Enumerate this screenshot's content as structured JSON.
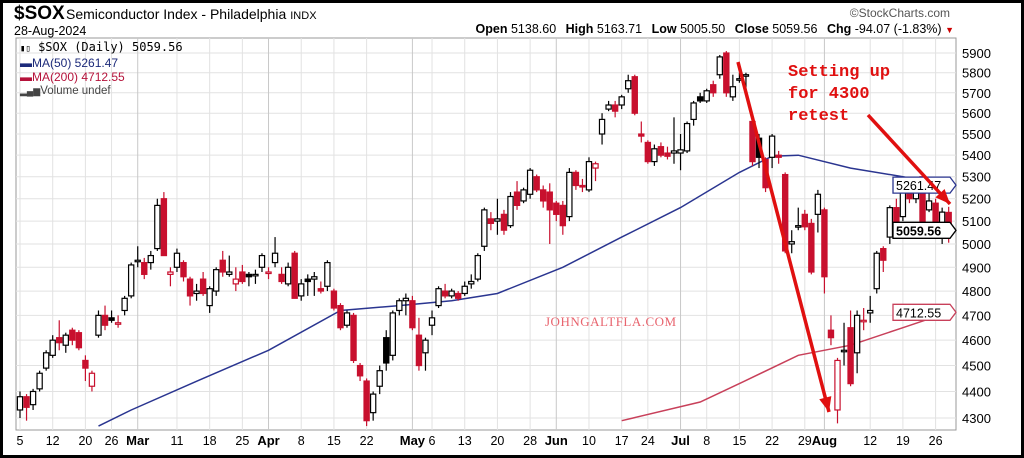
{
  "header": {
    "symbol": "$SOX",
    "name": "Semiconductor Index - Philadelphia",
    "exchange": "INDX",
    "date": "28-Aug-2024",
    "copyright": "©StockCharts.com",
    "open_label": "Open",
    "open": "5138.60",
    "high_label": "High",
    "high": "5163.71",
    "low_label": "Low",
    "low": "5005.50",
    "close_label": "Close",
    "close": "5059.56",
    "chg_label": "Chg",
    "chg": "-94.07 (-1.83%)",
    "chg_icon": "triangle-down-icon"
  },
  "legend": {
    "main": "$SOX (Daily) 5059.56",
    "ma50": "MA(50) 5261.47",
    "ma200": "MA(200) 4712.55",
    "volume": "Volume undef"
  },
  "annotation": {
    "text": "Setting up\nfor 4300\nretest",
    "color": "#e01010"
  },
  "watermark": "JOHNGALTFLA.COM",
  "chart_data": {
    "type": "candlestick",
    "y_scale": "log",
    "ylim": [
      4250,
      5950
    ],
    "y_ticks": [
      4300,
      4400,
      4500,
      4600,
      4700,
      4800,
      4900,
      5000,
      5100,
      5200,
      5300,
      5400,
      5500,
      5600,
      5700,
      5800,
      5900
    ],
    "grid": true,
    "colors": {
      "up": "#000000",
      "down": "#c8102e",
      "ma50": "#2a3590",
      "ma200": "#c8405a"
    },
    "x_ticks": [
      {
        "label": "5",
        "day_index": 0,
        "bold": false
      },
      {
        "label": "12",
        "day_index": 5,
        "bold": false
      },
      {
        "label": "20",
        "day_index": 10,
        "bold": false
      },
      {
        "label": "26",
        "day_index": 14,
        "bold": false
      },
      {
        "label": "Mar",
        "day_index": 18,
        "bold": true
      },
      {
        "label": "11",
        "day_index": 24,
        "bold": false
      },
      {
        "label": "18",
        "day_index": 29,
        "bold": false
      },
      {
        "label": "25",
        "day_index": 34,
        "bold": false
      },
      {
        "label": "Apr",
        "day_index": 38,
        "bold": true
      },
      {
        "label": "8",
        "day_index": 43,
        "bold": false
      },
      {
        "label": "15",
        "day_index": 48,
        "bold": false
      },
      {
        "label": "22",
        "day_index": 53,
        "bold": false
      },
      {
        "label": "May",
        "day_index": 60,
        "bold": true
      },
      {
        "label": "6",
        "day_index": 63,
        "bold": false
      },
      {
        "label": "13",
        "day_index": 68,
        "bold": false
      },
      {
        "label": "20",
        "day_index": 73,
        "bold": false
      },
      {
        "label": "28",
        "day_index": 78,
        "bold": false
      },
      {
        "label": "Jun",
        "day_index": 82,
        "bold": true
      },
      {
        "label": "10",
        "day_index": 87,
        "bold": false
      },
      {
        "label": "17",
        "day_index": 92,
        "bold": false
      },
      {
        "label": "24",
        "day_index": 96,
        "bold": false
      },
      {
        "label": "Jul",
        "day_index": 101,
        "bold": true
      },
      {
        "label": "8",
        "day_index": 105,
        "bold": false
      },
      {
        "label": "15",
        "day_index": 110,
        "bold": false
      },
      {
        "label": "22",
        "day_index": 115,
        "bold": false
      },
      {
        "label": "29",
        "day_index": 120,
        "bold": false
      },
      {
        "label": "Aug",
        "day_index": 123,
        "bold": true
      },
      {
        "label": "12",
        "day_index": 130,
        "bold": false
      },
      {
        "label": "19",
        "day_index": 135,
        "bold": false
      },
      {
        "label": "26",
        "day_index": 140,
        "bold": false
      }
    ],
    "candles_ohlc": [
      [
        4330,
        4400,
        4300,
        4380
      ],
      [
        4380,
        4390,
        4290,
        4340
      ],
      [
        4350,
        4410,
        4330,
        4400
      ],
      [
        4410,
        4480,
        4400,
        4470
      ],
      [
        4490,
        4560,
        4480,
        4550
      ],
      [
        4540,
        4620,
        4530,
        4600
      ],
      [
        4610,
        4680,
        4560,
        4590
      ],
      [
        4580,
        4630,
        4550,
        4620
      ],
      [
        4640,
        4650,
        4580,
        4600
      ],
      [
        4630,
        4640,
        4560,
        4570
      ],
      [
        4520,
        4540,
        4440,
        4490
      ],
      [
        4420,
        4480,
        4400,
        4470
      ],
      [
        4620,
        4720,
        4610,
        4700
      ],
      [
        4700,
        4740,
        4640,
        4660
      ],
      [
        4690,
        4720,
        4670,
        4680
      ],
      [
        4670,
        4700,
        4650,
        4670
      ],
      [
        4720,
        4780,
        4700,
        4770
      ],
      [
        4780,
        4920,
        4770,
        4910
      ],
      [
        4930,
        4990,
        4900,
        4930
      ],
      [
        4920,
        4940,
        4850,
        4870
      ],
      [
        4920,
        4970,
        4890,
        4950
      ],
      [
        4980,
        5200,
        4970,
        5170
      ],
      [
        5200,
        5230,
        4950,
        4950
      ],
      [
        4870,
        4900,
        4820,
        4880
      ],
      [
        4900,
        4980,
        4880,
        4960
      ],
      [
        4920,
        4930,
        4840,
        4860
      ],
      [
        4850,
        4860,
        4740,
        4780
      ],
      [
        4790,
        4830,
        4760,
        4800
      ],
      [
        4850,
        4880,
        4780,
        4790
      ],
      [
        4740,
        4820,
        4710,
        4810
      ],
      [
        4800,
        4900,
        4780,
        4890
      ],
      [
        4930,
        4970,
        4860,
        4880
      ],
      [
        4870,
        4950,
        4860,
        4880
      ],
      [
        4830,
        4900,
        4800,
        4850
      ],
      [
        4880,
        4910,
        4830,
        4840
      ],
      [
        4870,
        4880,
        4820,
        4860
      ],
      [
        4870,
        4890,
        4830,
        4870
      ],
      [
        4900,
        4960,
        4880,
        4950
      ],
      [
        4880,
        4900,
        4850,
        4880
      ],
      [
        4920,
        5030,
        4900,
        4960
      ],
      [
        4870,
        4900,
        4830,
        4840
      ],
      [
        4830,
        4920,
        4820,
        4900
      ],
      [
        4960,
        4970,
        4770,
        4770
      ],
      [
        4780,
        4850,
        4760,
        4830
      ],
      [
        4850,
        4870,
        4780,
        4840
      ],
      [
        4850,
        4880,
        4780,
        4860
      ],
      [
        4810,
        4840,
        4790,
        4800
      ],
      [
        4820,
        4930,
        4800,
        4920
      ],
      [
        4800,
        4810,
        4720,
        4730
      ],
      [
        4740,
        4750,
        4640,
        4650
      ],
      [
        4660,
        4720,
        4650,
        4710
      ],
      [
        4700,
        4710,
        4510,
        4520
      ],
      [
        4500,
        4510,
        4440,
        4460
      ],
      [
        4440,
        4450,
        4270,
        4290
      ],
      [
        4320,
        4400,
        4290,
        4390
      ],
      [
        4420,
        4500,
        4390,
        4480
      ],
      [
        4610,
        4640,
        4480,
        4510
      ],
      [
        4540,
        4720,
        4520,
        4710
      ],
      [
        4720,
        4770,
        4700,
        4760
      ],
      [
        4760,
        4790,
        4700,
        4770
      ],
      [
        4760,
        4780,
        4640,
        4650
      ],
      [
        4620,
        4690,
        4480,
        4500
      ],
      [
        4550,
        4610,
        4480,
        4600
      ],
      [
        4660,
        4720,
        4620,
        4690
      ],
      [
        4740,
        4820,
        4730,
        4810
      ],
      [
        4800,
        4830,
        4770,
        4780
      ],
      [
        4780,
        4810,
        4770,
        4800
      ],
      [
        4790,
        4800,
        4760,
        4770
      ],
      [
        4790,
        4840,
        4780,
        4820
      ],
      [
        4830,
        4870,
        4810,
        4840
      ],
      [
        4850,
        4960,
        4840,
        4950
      ],
      [
        4990,
        5160,
        4970,
        5150
      ],
      [
        5110,
        5140,
        5060,
        5090
      ],
      [
        5100,
        5200,
        5040,
        5110
      ],
      [
        5130,
        5150,
        5040,
        5060
      ],
      [
        5080,
        5230,
        5070,
        5210
      ],
      [
        5230,
        5280,
        5150,
        5170
      ],
      [
        5190,
        5250,
        5180,
        5240
      ],
      [
        5220,
        5340,
        5200,
        5330
      ],
      [
        5300,
        5310,
        5230,
        5240
      ],
      [
        5240,
        5260,
        5160,
        5190
      ],
      [
        5230,
        5270,
        5000,
        5150
      ],
      [
        5180,
        5190,
        5100,
        5130
      ],
      [
        5170,
        5190,
        5040,
        5080
      ],
      [
        5120,
        5340,
        5100,
        5320
      ],
      [
        5320,
        5330,
        5240,
        5260
      ],
      [
        5260,
        5290,
        5230,
        5255
      ],
      [
        5240,
        5390,
        5230,
        5370
      ],
      [
        5340,
        5370,
        5280,
        5360
      ],
      [
        5500,
        5600,
        5450,
        5570
      ],
      [
        5620,
        5660,
        5610,
        5640
      ],
      [
        5640,
        5660,
        5580,
        5610
      ],
      [
        5640,
        5690,
        5620,
        5680
      ],
      [
        5720,
        5790,
        5700,
        5760
      ],
      [
        5780,
        5790,
        5590,
        5600
      ],
      [
        5500,
        5560,
        5460,
        5490
      ],
      [
        5460,
        5470,
        5360,
        5370
      ],
      [
        5370,
        5450,
        5350,
        5430
      ],
      [
        5440,
        5460,
        5390,
        5400
      ],
      [
        5410,
        5440,
        5380,
        5395
      ],
      [
        5410,
        5580,
        5360,
        5420
      ],
      [
        5410,
        5500,
        5330,
        5425
      ],
      [
        5420,
        5560,
        5410,
        5550
      ],
      [
        5570,
        5660,
        5540,
        5650
      ],
      [
        5680,
        5700,
        5650,
        5660
      ],
      [
        5660,
        5720,
        5650,
        5710
      ],
      [
        5740,
        5760,
        5680,
        5700
      ],
      [
        5790,
        5890,
        5770,
        5880
      ],
      [
        5900,
        5910,
        5680,
        5700
      ],
      [
        5680,
        5790,
        5660,
        5730
      ],
      [
        5770,
        5800,
        5750,
        5770
      ],
      [
        5790,
        5800,
        5700,
        5790
      ],
      [
        5560,
        5570,
        5350,
        5370
      ],
      [
        5480,
        5500,
        5340,
        5390
      ],
      [
        5380,
        5390,
        5230,
        5250
      ],
      [
        5390,
        5500,
        5340,
        5490
      ],
      [
        5400,
        5420,
        5360,
        5390
      ],
      [
        5310,
        5320,
        4960,
        4970
      ],
      [
        5000,
        5060,
        4960,
        5010
      ],
      [
        5080,
        5160,
        5060,
        5080
      ],
      [
        5130,
        5150,
        5060,
        5075
      ],
      [
        5090,
        5110,
        4870,
        4880
      ],
      [
        5130,
        5240,
        5050,
        5220
      ],
      [
        5150,
        5160,
        4790,
        4860
      ],
      [
        4640,
        4700,
        4580,
        4610
      ],
      [
        4330,
        4530,
        4280,
        4520
      ],
      [
        4560,
        4670,
        4500,
        4560
      ],
      [
        4650,
        4720,
        4420,
        4430
      ],
      [
        4550,
        4720,
        4470,
        4700
      ],
      [
        4680,
        4730,
        4640,
        4680
      ],
      [
        4710,
        4780,
        4670,
        4720
      ],
      [
        4810,
        4970,
        4790,
        4960
      ],
      [
        4980,
        4990,
        4880,
        4930
      ],
      [
        5030,
        5170,
        5000,
        5160
      ],
      [
        5160,
        5200,
        5080,
        5090
      ],
      [
        5120,
        5260,
        5100,
        5250
      ],
      [
        5240,
        5270,
        5180,
        5200
      ],
      [
        5200,
        5280,
        5180,
        5260
      ],
      [
        5300,
        5310,
        5060,
        5080
      ],
      [
        5150,
        5230,
        5140,
        5190
      ],
      [
        5180,
        5200,
        5060,
        5070
      ],
      [
        5040,
        5160,
        5000,
        5140
      ],
      [
        5138.6,
        5163.71,
        5005.5,
        5059.56
      ]
    ],
    "ma50": {
      "name": "MA(50)",
      "points": [
        [
          12,
          4270
        ],
        [
          17,
          4330
        ],
        [
          28,
          4450
        ],
        [
          38,
          4560
        ],
        [
          49,
          4720
        ],
        [
          58,
          4740
        ],
        [
          66,
          4760
        ],
        [
          73,
          4790
        ],
        [
          83,
          4900
        ],
        [
          92,
          5030
        ],
        [
          101,
          5160
        ],
        [
          110,
          5320
        ],
        [
          115,
          5395
        ],
        [
          119,
          5400
        ],
        [
          127,
          5340
        ],
        [
          135,
          5300
        ],
        [
          142,
          5261.47
        ]
      ]
    },
    "ma200": {
      "name": "MA(200)",
      "points": [
        [
          92,
          4290
        ],
        [
          104,
          4360
        ],
        [
          110,
          4430
        ],
        [
          119,
          4540
        ],
        [
          127,
          4580
        ],
        [
          135,
          4650
        ],
        [
          142,
          4712.55
        ]
      ]
    },
    "value_tags": {
      "ma50": "5261.47",
      "close": "5059.56",
      "ma200": "4712.55"
    }
  }
}
